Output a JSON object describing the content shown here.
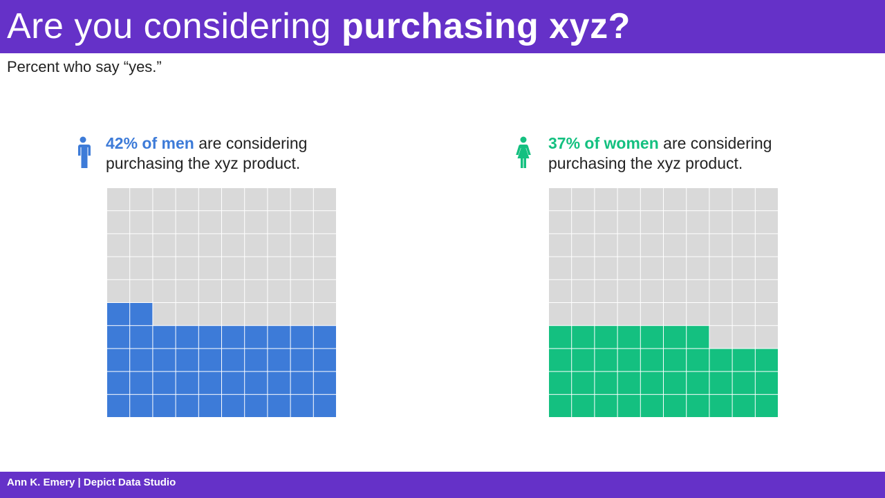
{
  "header": {
    "title_regular": "Are you considering ",
    "title_bold": "purchasing xyz?",
    "subtitle": "Percent who say “yes.”"
  },
  "colors": {
    "brand_purple": "#6531c8",
    "men": "#3d7bd8",
    "women": "#14c080",
    "empty_cell": "#d9d9d9"
  },
  "chart_data": [
    {
      "type": "waffle",
      "grid": [
        10,
        10
      ],
      "group": "men",
      "value": 42,
      "total": 100,
      "stat_text": "42% of men",
      "caption_line1_rest": " are considering",
      "caption_line2": "purchasing the xyz product.",
      "icon": "male-person-icon",
      "color": "#3d7bd8"
    },
    {
      "type": "waffle",
      "grid": [
        10,
        10
      ],
      "group": "women",
      "value": 37,
      "total": 100,
      "stat_text": "37% of women",
      "caption_line1_rest": " are considering",
      "caption_line2": "purchasing the xyz product.",
      "icon": "female-person-icon",
      "color": "#14c080"
    }
  ],
  "footer": {
    "text": "Ann K. Emery | Depict Data Studio"
  }
}
